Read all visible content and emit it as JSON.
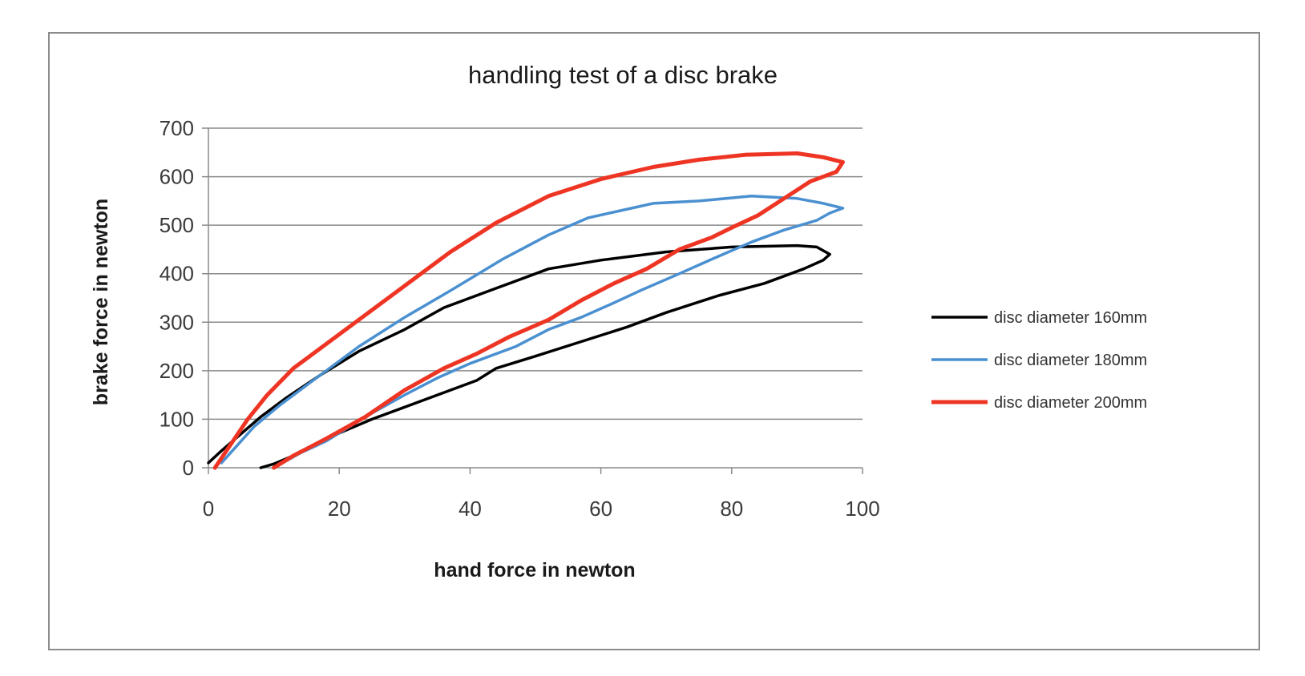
{
  "chart_data": {
    "type": "line",
    "title": "handling test of a disc brake",
    "xlabel": "hand force in newton",
    "ylabel": "brake force in newton",
    "xlim": [
      0,
      100
    ],
    "ylim": [
      0,
      700
    ],
    "xticks": [
      0,
      20,
      40,
      60,
      80,
      100
    ],
    "yticks": [
      0,
      100,
      200,
      300,
      400,
      500,
      600,
      700
    ],
    "grid": "horizontal",
    "legend_position": "right",
    "series": [
      {
        "name": "disc diameter 160mm",
        "color": "#000000",
        "x": [
          0,
          2,
          5,
          8,
          12,
          17,
          23,
          30,
          36,
          44,
          52,
          60,
          70,
          80,
          90,
          93,
          95,
          94,
          91,
          85,
          78,
          70,
          64,
          57,
          50,
          44,
          41,
          36,
          30,
          25,
          18,
          13,
          10,
          8
        ],
        "y": [
          10,
          35,
          70,
          105,
          145,
          190,
          240,
          285,
          330,
          370,
          410,
          428,
          445,
          455,
          458,
          455,
          440,
          428,
          410,
          380,
          355,
          320,
          290,
          260,
          230,
          205,
          180,
          155,
          125,
          100,
          60,
          25,
          8,
          0
        ]
      },
      {
        "name": "disc diameter 180mm",
        "color": "#4a90d0",
        "x": [
          2,
          4,
          7,
          11,
          16,
          23,
          30,
          37,
          45,
          52,
          58,
          63,
          68,
          75,
          83,
          90,
          94,
          97,
          95,
          93,
          88,
          83,
          77,
          72,
          66,
          62,
          57,
          52,
          47,
          40,
          35,
          30,
          24,
          18,
          14,
          10
        ],
        "y": [
          10,
          40,
          85,
          130,
          180,
          250,
          310,
          365,
          430,
          480,
          515,
          530,
          545,
          550,
          560,
          555,
          545,
          535,
          525,
          510,
          490,
          465,
          430,
          400,
          365,
          340,
          310,
          285,
          250,
          215,
          185,
          150,
          105,
          55,
          30,
          0
        ]
      },
      {
        "name": "disc diameter 200mm",
        "color": "#ee3524",
        "x": [
          1,
          3,
          6,
          9,
          13,
          18,
          24,
          30,
          37,
          44,
          52,
          60,
          68,
          75,
          82,
          90,
          94,
          97,
          96,
          92,
          88,
          84,
          80,
          77,
          72,
          67,
          62,
          57,
          52,
          46,
          41,
          36,
          30,
          24,
          18,
          13,
          10
        ],
        "y": [
          0,
          40,
          100,
          150,
          205,
          255,
          315,
          375,
          445,
          505,
          560,
          595,
          620,
          635,
          645,
          648,
          640,
          630,
          610,
          590,
          555,
          520,
          495,
          475,
          450,
          410,
          380,
          345,
          305,
          270,
          235,
          205,
          160,
          105,
          60,
          25,
          0
        ]
      }
    ]
  }
}
